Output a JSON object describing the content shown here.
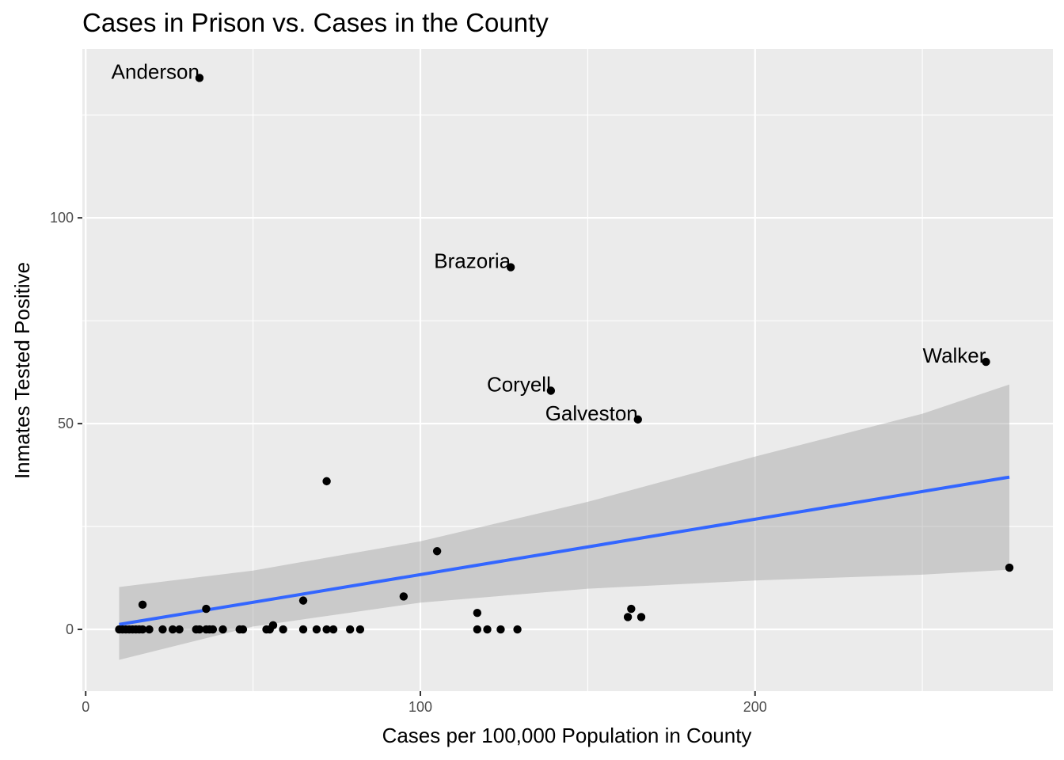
{
  "chart_data": {
    "type": "scatter",
    "title": "Cases in Prison vs. Cases in the County",
    "xlabel": "Cases per 100,000 Population in County",
    "ylabel": "Inmates Tested Positive",
    "xlim": [
      -1,
      289
    ],
    "ylim": [
      -15,
      141
    ],
    "x_ticks": [
      {
        "value": 0,
        "label": "0"
      },
      {
        "value": 100,
        "label": "100"
      },
      {
        "value": 200,
        "label": "200"
      }
    ],
    "y_ticks": [
      {
        "value": 0,
        "label": "0"
      },
      {
        "value": 50,
        "label": "50"
      },
      {
        "value": 100,
        "label": "100"
      }
    ],
    "x_minor": [
      50,
      150,
      250
    ],
    "y_minor": [
      25,
      75,
      125
    ],
    "grid": true,
    "background": "#ebebeb",
    "grid_color": "#ffffff",
    "point_color": "#000000",
    "series": [
      {
        "points": [
          [
            34,
            134
          ],
          [
            127,
            88
          ],
          [
            269,
            65
          ],
          [
            139,
            58
          ],
          [
            165,
            51
          ],
          [
            72,
            36
          ],
          [
            105,
            19
          ],
          [
            276,
            15
          ],
          [
            95,
            8
          ],
          [
            65,
            7
          ],
          [
            17,
            6
          ],
          [
            36,
            5
          ],
          [
            163,
            5
          ],
          [
            117,
            4
          ],
          [
            162,
            3
          ],
          [
            166,
            3
          ],
          [
            56,
            1
          ],
          [
            10,
            0
          ],
          [
            11,
            0
          ],
          [
            12,
            0
          ],
          [
            13,
            0
          ],
          [
            14,
            0
          ],
          [
            15,
            0
          ],
          [
            16,
            0
          ],
          [
            17,
            0
          ],
          [
            19,
            0
          ],
          [
            23,
            0
          ],
          [
            26,
            0
          ],
          [
            28,
            0
          ],
          [
            33,
            0
          ],
          [
            34,
            0
          ],
          [
            36,
            0
          ],
          [
            37,
            0
          ],
          [
            38,
            0
          ],
          [
            41,
            0
          ],
          [
            46,
            0
          ],
          [
            47,
            0
          ],
          [
            54,
            0
          ],
          [
            55,
            0
          ],
          [
            59,
            0
          ],
          [
            65,
            0
          ],
          [
            69,
            0
          ],
          [
            72,
            0
          ],
          [
            74,
            0
          ],
          [
            79,
            0
          ],
          [
            82,
            0
          ],
          [
            117,
            0
          ],
          [
            120,
            0
          ],
          [
            124,
            0
          ],
          [
            129,
            0
          ]
        ]
      }
    ],
    "labels": [
      {
        "x": 34,
        "y": 134,
        "text": "Anderson"
      },
      {
        "x": 127,
        "y": 88,
        "text": "Brazoria"
      },
      {
        "x": 269,
        "y": 65,
        "text": "Walker"
      },
      {
        "x": 139,
        "y": 58,
        "text": "Coryell"
      },
      {
        "x": 165,
        "y": 51,
        "text": "Galveston"
      }
    ],
    "smooth": {
      "method": "lm",
      "line_color": "#3366ff",
      "band_color": "#999999",
      "x": [
        10,
        276
      ],
      "fit": [
        1.2,
        37
      ],
      "upper": [
        10.3,
        59.5
      ],
      "lower": [
        -7.4,
        14.5
      ],
      "band_upper": [
        [
          10,
          10.3
        ],
        [
          50,
          14.3
        ],
        [
          100,
          21.4
        ],
        [
          150,
          31.0
        ],
        [
          200,
          42.0
        ],
        [
          250,
          52.4
        ],
        [
          276,
          59.5
        ]
      ],
      "band_lower": [
        [
          10,
          -7.4
        ],
        [
          50,
          0.7
        ],
        [
          100,
          6.5
        ],
        [
          150,
          9.9
        ],
        [
          200,
          11.9
        ],
        [
          250,
          13.3
        ],
        [
          276,
          14.5
        ]
      ]
    }
  }
}
